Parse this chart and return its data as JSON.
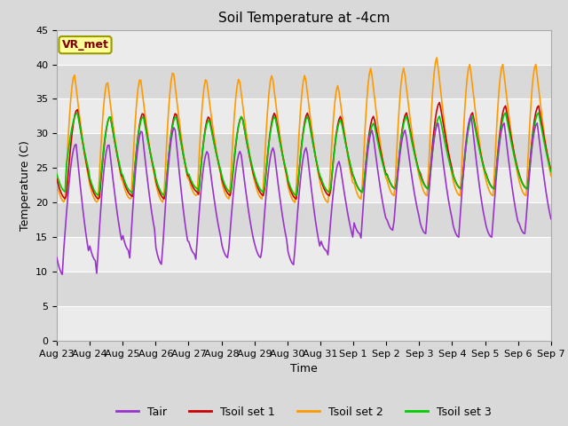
{
  "title": "Soil Temperature at -4cm",
  "xlabel": "Time",
  "ylabel": "Temperature (C)",
  "ylim": [
    0,
    45
  ],
  "yticks": [
    0,
    5,
    10,
    15,
    20,
    25,
    30,
    35,
    40,
    45
  ],
  "x_labels": [
    "Aug 23",
    "Aug 24",
    "Aug 25",
    "Aug 26",
    "Aug 27",
    "Aug 28",
    "Aug 29",
    "Aug 30",
    "Aug 31",
    "Sep 1",
    "Sep 2",
    "Sep 3",
    "Sep 4",
    "Sep 5",
    "Sep 6",
    "Sep 7"
  ],
  "colors": {
    "Tair": "#9933cc",
    "Tsoil_set1": "#cc0000",
    "Tsoil_set2": "#ff9900",
    "Tsoil_set3": "#00cc00"
  },
  "fig_bg": "#d9d9d9",
  "plot_bg_light": "#ebebeb",
  "plot_bg_dark": "#d9d9d9",
  "grid_color": "#ffffff",
  "label_box_text": "VR_met",
  "label_box_facecolor": "#ffff99",
  "label_box_edgecolor": "#999900",
  "label_box_textcolor": "#800000",
  "title_fontsize": 11,
  "axis_fontsize": 9,
  "tick_fontsize": 8,
  "legend_fontsize": 9,
  "line_width": 1.2
}
